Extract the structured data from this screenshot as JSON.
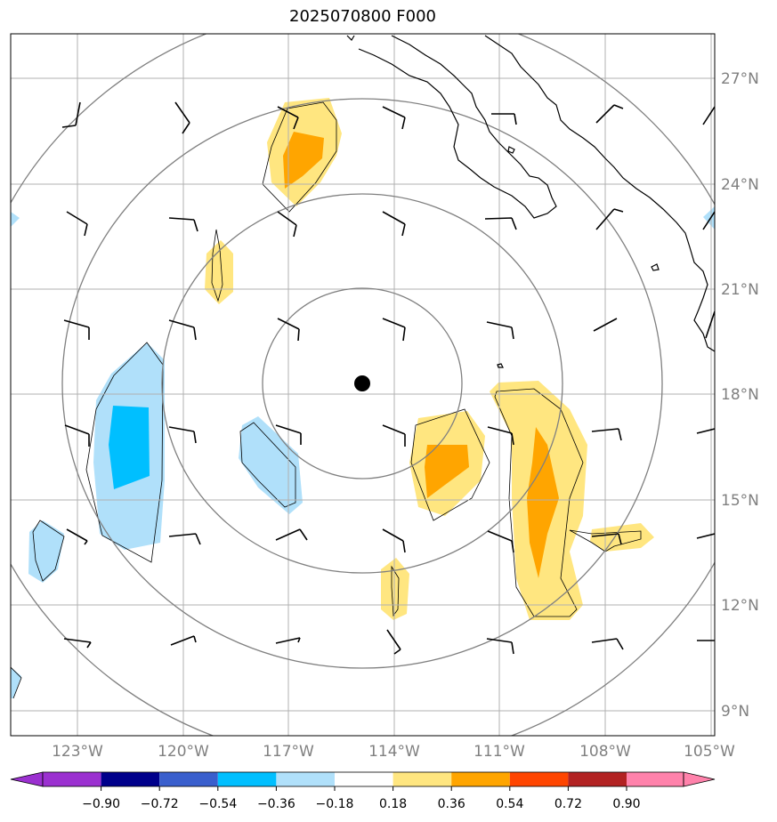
{
  "title": "2025070800 F000",
  "map": {
    "lat_labels": [
      "27°N",
      "24°N",
      "21°N",
      "18°N",
      "15°N",
      "12°N",
      "9°N"
    ],
    "lon_labels": [
      "123°W",
      "120°W",
      "117°W",
      "114°W",
      "111°W",
      "108°W",
      "105°W"
    ],
    "lat_ticks": [
      27,
      24,
      21,
      18,
      15,
      12,
      9
    ],
    "lon_ticks": [
      -123,
      -120,
      -117,
      -114,
      -111,
      -108,
      -105
    ],
    "extent": {
      "lon_min": -124.9,
      "lon_max": -104.9,
      "lat_min": 8.3,
      "lat_max": 28.2
    },
    "center": {
      "lon": -115.0,
      "lat": 18.3
    },
    "gridlines": true
  },
  "colorbar": {
    "levels": [
      "−0.90",
      "−0.72",
      "−0.54",
      "−0.36",
      "−0.18",
      "0.18",
      "0.36",
      "0.54",
      "0.72",
      "0.90"
    ],
    "colors": [
      "#9b30d0",
      "#00008b",
      "#3a5fcd",
      "#00bfff",
      "#b0e0fa",
      "#ffffff",
      "#ffe680",
      "#ffa500",
      "#ff4500",
      "#b22222",
      "#ff82ab"
    ],
    "extend": "both"
  },
  "colors": {
    "grid": "#b0b0b0",
    "rings": "#808080",
    "coast": "#000000",
    "marker": "#000000"
  }
}
